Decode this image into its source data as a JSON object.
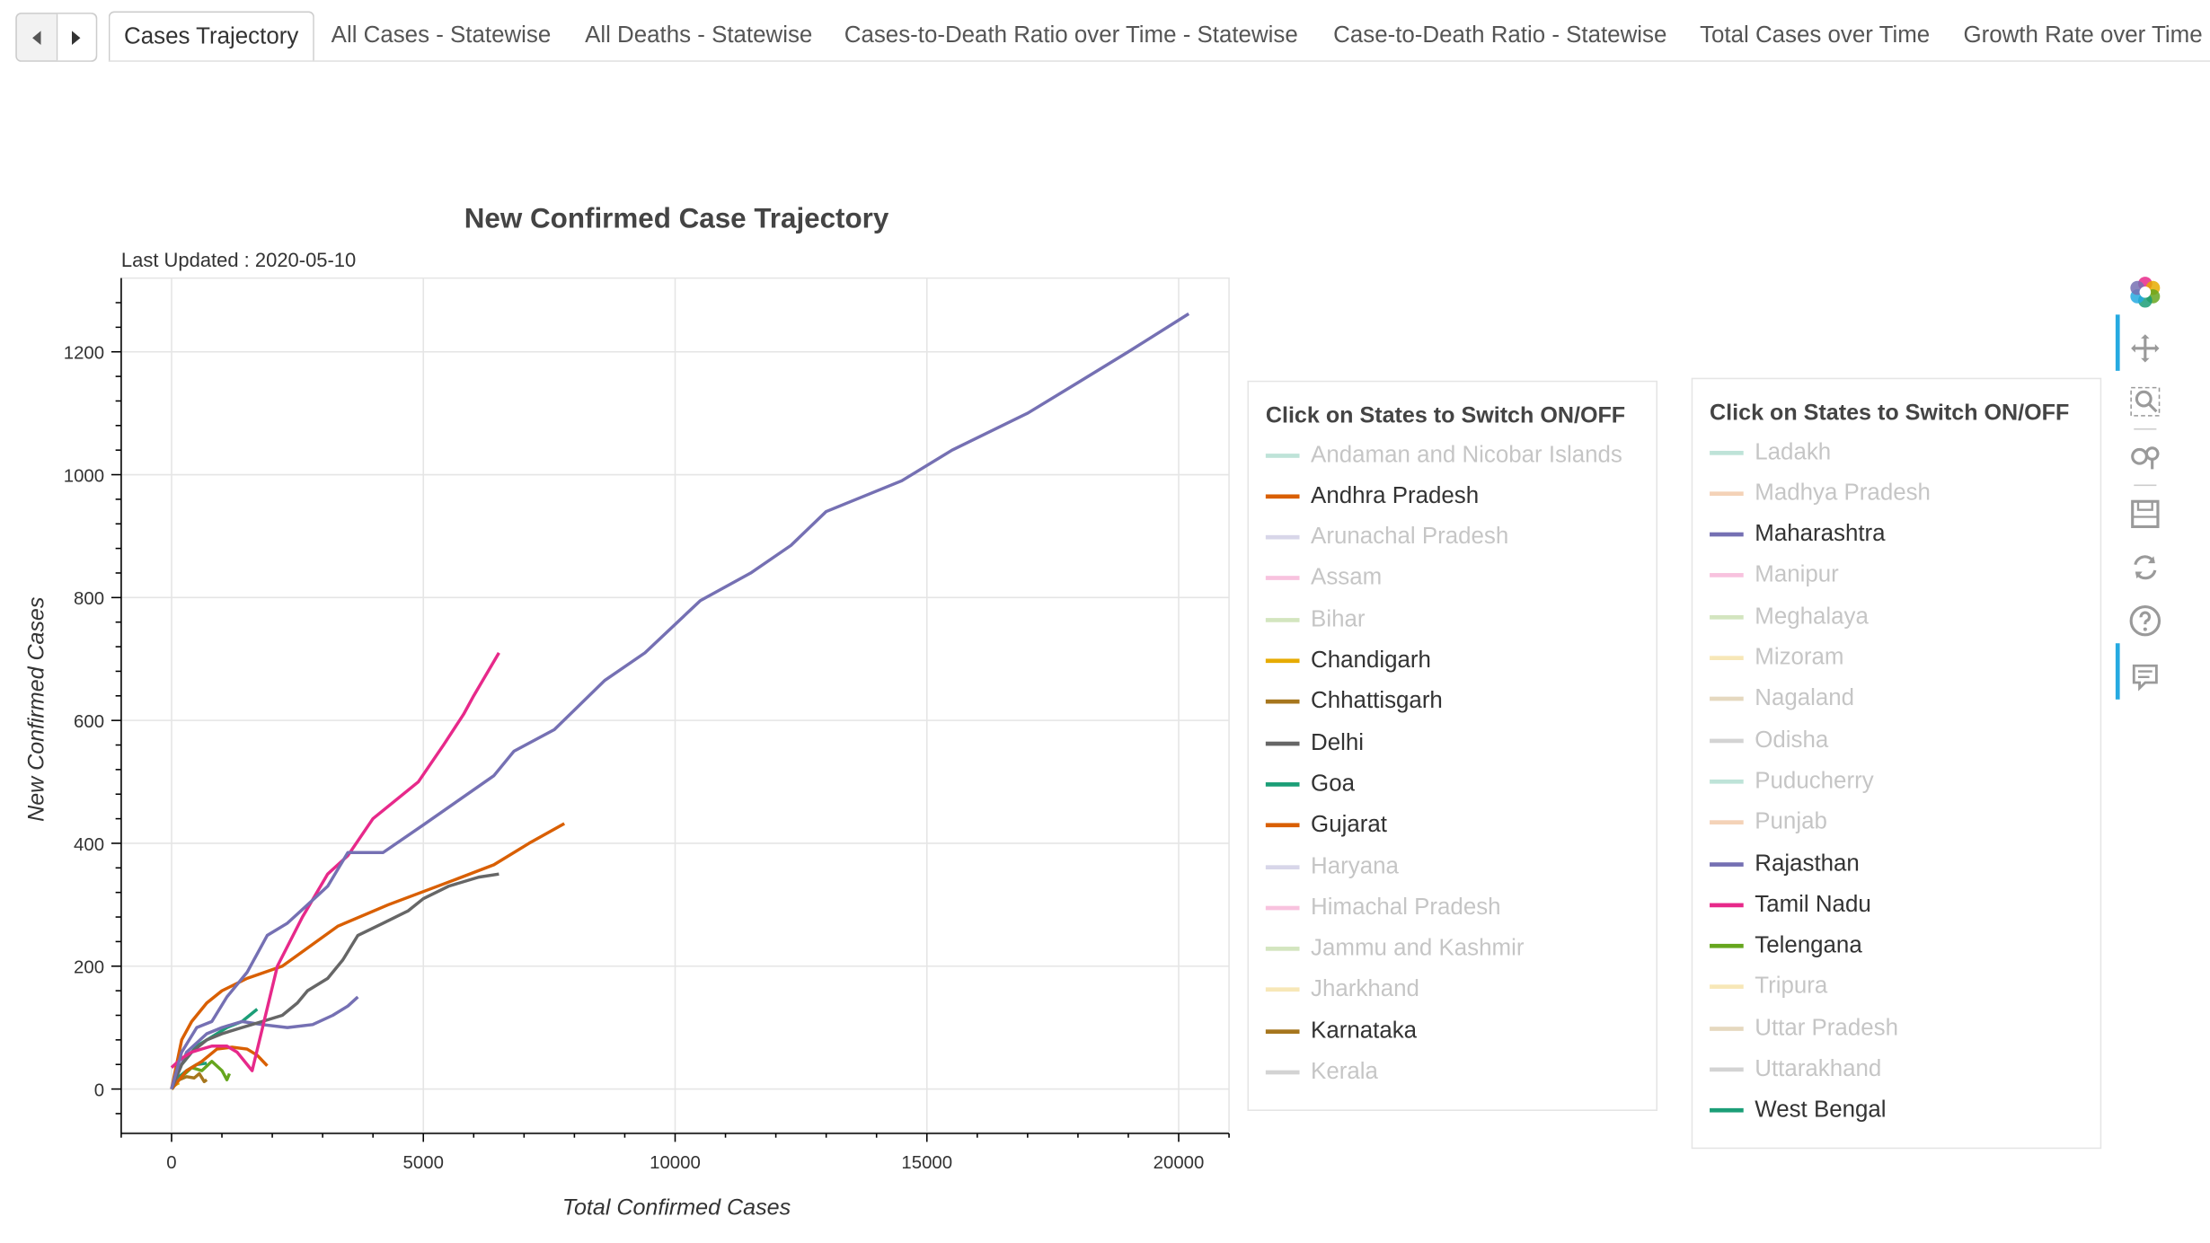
{
  "tabs": [
    "Cases Trajectory",
    "All Cases - Statewise",
    "All Deaths - Statewise",
    "Cases-to-Death Ratio over Time - Statewise",
    "Case-to-Death Ratio - Statewise",
    "Total Cases over Time",
    "Growth Rate over Time"
  ],
  "active_tab": 0,
  "chart_data": {
    "type": "line",
    "title": "New Confirmed Case Trajectory",
    "subtitle": "Last Updated : 2020-05-10",
    "xlabel": "Total Confirmed Cases",
    "ylabel": "New Confirmed Cases",
    "xlim": [
      -1000,
      21000
    ],
    "ylim": [
      -70,
      1320
    ],
    "xticks": [
      0,
      5000,
      10000,
      15000,
      20000
    ],
    "yticks": [
      0,
      200,
      400,
      600,
      800,
      1000,
      1200
    ],
    "grid": true,
    "series": [
      {
        "name": "Maharashtra",
        "color": "#7570b3",
        "visible": true,
        "x": [
          0,
          200,
          500,
          800,
          1100,
          1500,
          1900,
          2300,
          2700,
          3100,
          3500,
          4200,
          5000,
          5700,
          6400,
          6800,
          7600,
          8600,
          9400,
          10500,
          11500,
          12300,
          13000,
          14500,
          15500,
          17000,
          18000,
          19000,
          20200
        ],
        "y": [
          0,
          60,
          100,
          110,
          150,
          190,
          250,
          270,
          300,
          330,
          385,
          385,
          430,
          470,
          510,
          550,
          585,
          665,
          710,
          795,
          840,
          885,
          940,
          990,
          1040,
          1100,
          1150,
          1200,
          1262
        ]
      },
      {
        "name": "Tamil Nadu",
        "color": "#e7298a",
        "visible": true,
        "x": [
          0,
          200,
          400,
          600,
          800,
          1100,
          1300,
          1600,
          2100,
          2600,
          3100,
          3500,
          4000,
          4900,
          5400,
          5800,
          6000,
          6500
        ],
        "y": [
          35,
          50,
          60,
          65,
          70,
          70,
          60,
          30,
          200,
          280,
          350,
          380,
          440,
          500,
          560,
          610,
          640,
          710
        ]
      },
      {
        "name": "Gujarat",
        "color": "#d95f02",
        "visible": true,
        "x": [
          0,
          200,
          400,
          700,
          1000,
          1500,
          2200,
          3300,
          4300,
          5600,
          6400,
          7100,
          7800
        ],
        "y": [
          0,
          80,
          110,
          140,
          160,
          180,
          200,
          265,
          300,
          340,
          365,
          400,
          432
        ]
      },
      {
        "name": "Delhi",
        "color": "#666666",
        "visible": true,
        "x": [
          0,
          200,
          400,
          700,
          1000,
          1400,
          1800,
          2200,
          2500,
          2700,
          3100,
          3400,
          3700,
          4200,
          4700,
          5000,
          5500,
          6100,
          6500
        ],
        "y": [
          0,
          40,
          60,
          80,
          90,
          100,
          110,
          120,
          140,
          160,
          180,
          210,
          250,
          270,
          290,
          310,
          330,
          345,
          350
        ]
      },
      {
        "name": "Andhra Pradesh",
        "color": "#d95f02",
        "visible": true,
        "x": [
          0,
          300,
          600,
          900,
          1200,
          1500,
          1700,
          1900
        ],
        "y": [
          0,
          30,
          45,
          65,
          68,
          65,
          55,
          38
        ]
      },
      {
        "name": "Rajasthan",
        "color": "#7570b3",
        "visible": true,
        "x": [
          0,
          300,
          700,
          1000,
          1400,
          1800,
          2300,
          2800,
          3200,
          3500,
          3700
        ],
        "y": [
          0,
          60,
          90,
          100,
          110,
          105,
          100,
          105,
          120,
          135,
          150
        ]
      },
      {
        "name": "West Bengal",
        "color": "#1b9e77",
        "visible": true,
        "x": [
          0,
          200,
          500,
          800,
          1100,
          1400,
          1700
        ],
        "y": [
          0,
          40,
          70,
          85,
          100,
          110,
          130
        ]
      },
      {
        "name": "Goa",
        "color": "#1b9e77",
        "visible": true,
        "x": [
          0,
          150,
          300,
          500,
          700
        ],
        "y": [
          0,
          20,
          30,
          40,
          42
        ]
      },
      {
        "name": "Telengana",
        "color": "#66a61e",
        "visible": true,
        "x": [
          0,
          200,
          400,
          600,
          800,
          1000,
          1100,
          1150
        ],
        "y": [
          0,
          20,
          35,
          30,
          45,
          30,
          15,
          25
        ]
      },
      {
        "name": "Karnataka",
        "color": "#a6761d",
        "visible": true,
        "x": [
          0,
          150,
          300,
          450,
          550,
          650,
          700
        ],
        "y": [
          0,
          15,
          20,
          18,
          25,
          12,
          15
        ]
      },
      {
        "name": "Chhattisgarh",
        "color": "#a6761d",
        "visible": true,
        "x": [
          0,
          30,
          60
        ],
        "y": [
          0,
          3,
          2
        ]
      },
      {
        "name": "Chandigarh",
        "color": "#e6ab02",
        "visible": true,
        "x": [
          0,
          50,
          100,
          150
        ],
        "y": [
          0,
          5,
          8,
          10
        ]
      }
    ]
  },
  "legend_left": {
    "title": "Click on States to Switch ON/OFF",
    "items": [
      {
        "label": "Andaman and Nicobar Islands",
        "color": "#1b9e77",
        "on": false
      },
      {
        "label": "Andhra Pradesh",
        "color": "#d95f02",
        "on": true
      },
      {
        "label": "Arunachal Pradesh",
        "color": "#7570b3",
        "on": false
      },
      {
        "label": "Assam",
        "color": "#e7298a",
        "on": false
      },
      {
        "label": "Bihar",
        "color": "#66a61e",
        "on": false
      },
      {
        "label": "Chandigarh",
        "color": "#e6ab02",
        "on": true
      },
      {
        "label": "Chhattisgarh",
        "color": "#a6761d",
        "on": true
      },
      {
        "label": "Delhi",
        "color": "#666666",
        "on": true
      },
      {
        "label": "Goa",
        "color": "#1b9e77",
        "on": true
      },
      {
        "label": "Gujarat",
        "color": "#d95f02",
        "on": true
      },
      {
        "label": "Haryana",
        "color": "#7570b3",
        "on": false
      },
      {
        "label": "Himachal Pradesh",
        "color": "#e7298a",
        "on": false
      },
      {
        "label": "Jammu and Kashmir",
        "color": "#66a61e",
        "on": false
      },
      {
        "label": "Jharkhand",
        "color": "#e6ab02",
        "on": false
      },
      {
        "label": "Karnataka",
        "color": "#a6761d",
        "on": true
      },
      {
        "label": "Kerala",
        "color": "#666666",
        "on": false
      }
    ]
  },
  "legend_right": {
    "title": "Click on States to Switch ON/OFF",
    "items": [
      {
        "label": "Ladakh",
        "color": "#1b9e77",
        "on": false
      },
      {
        "label": "Madhya Pradesh",
        "color": "#d95f02",
        "on": false
      },
      {
        "label": "Maharashtra",
        "color": "#7570b3",
        "on": true
      },
      {
        "label": "Manipur",
        "color": "#e7298a",
        "on": false
      },
      {
        "label": "Meghalaya",
        "color": "#66a61e",
        "on": false
      },
      {
        "label": "Mizoram",
        "color": "#e6ab02",
        "on": false
      },
      {
        "label": "Nagaland",
        "color": "#a6761d",
        "on": false
      },
      {
        "label": "Odisha",
        "color": "#666666",
        "on": false
      },
      {
        "label": "Puducherry",
        "color": "#1b9e77",
        "on": false
      },
      {
        "label": "Punjab",
        "color": "#d95f02",
        "on": false
      },
      {
        "label": "Rajasthan",
        "color": "#7570b3",
        "on": true
      },
      {
        "label": "Tamil Nadu",
        "color": "#e7298a",
        "on": true
      },
      {
        "label": "Telengana",
        "color": "#66a61e",
        "on": true
      },
      {
        "label": "Tripura",
        "color": "#e6ab02",
        "on": false
      },
      {
        "label": "Uttar Pradesh",
        "color": "#a6761d",
        "on": false
      },
      {
        "label": "Uttarakhand",
        "color": "#666666",
        "on": false
      },
      {
        "label": "West Bengal",
        "color": "#1b9e77",
        "on": true
      }
    ]
  },
  "toolbar": [
    "bokeh-logo-icon",
    "pan-icon",
    "box-zoom-icon",
    "wheel-zoom-icon",
    "save-icon",
    "reset-icon",
    "help-icon",
    "hover-icon"
  ]
}
